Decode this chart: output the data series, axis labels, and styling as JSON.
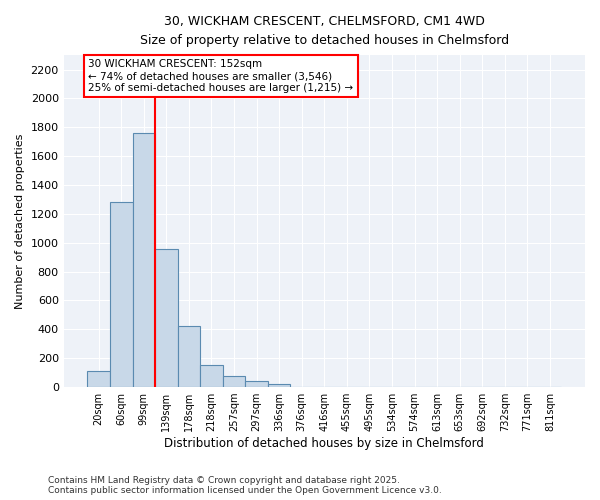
{
  "title_line1": "30, WICKHAM CRESCENT, CHELMSFORD, CM1 4WD",
  "title_line2": "Size of property relative to detached houses in Chelmsford",
  "xlabel": "Distribution of detached houses by size in Chelmsford",
  "ylabel": "Number of detached properties",
  "categories": [
    "20sqm",
    "60sqm",
    "99sqm",
    "139sqm",
    "178sqm",
    "218sqm",
    "257sqm",
    "297sqm",
    "336sqm",
    "376sqm",
    "416sqm",
    "455sqm",
    "495sqm",
    "534sqm",
    "574sqm",
    "613sqm",
    "653sqm",
    "692sqm",
    "732sqm",
    "771sqm",
    "811sqm"
  ],
  "values": [
    110,
    1285,
    1760,
    960,
    420,
    150,
    75,
    45,
    22,
    0,
    0,
    0,
    0,
    0,
    0,
    0,
    0,
    0,
    0,
    0,
    0
  ],
  "bar_color": "#c8d8e8",
  "bar_edge_color": "#5a8ab0",
  "vline_x": 2.5,
  "vline_color": "red",
  "annotation_title": "30 WICKHAM CRESCENT: 152sqm",
  "annotation_line2": "← 74% of detached houses are smaller (3,546)",
  "annotation_line3": "25% of semi-detached houses are larger (1,215) →",
  "ylim": [
    0,
    2300
  ],
  "yticks": [
    0,
    200,
    400,
    600,
    800,
    1000,
    1200,
    1400,
    1600,
    1800,
    2000,
    2200
  ],
  "background_color": "#eef2f8",
  "grid_color": "white",
  "footnote_line1": "Contains HM Land Registry data © Crown copyright and database right 2025.",
  "footnote_line2": "Contains public sector information licensed under the Open Government Licence v3.0."
}
